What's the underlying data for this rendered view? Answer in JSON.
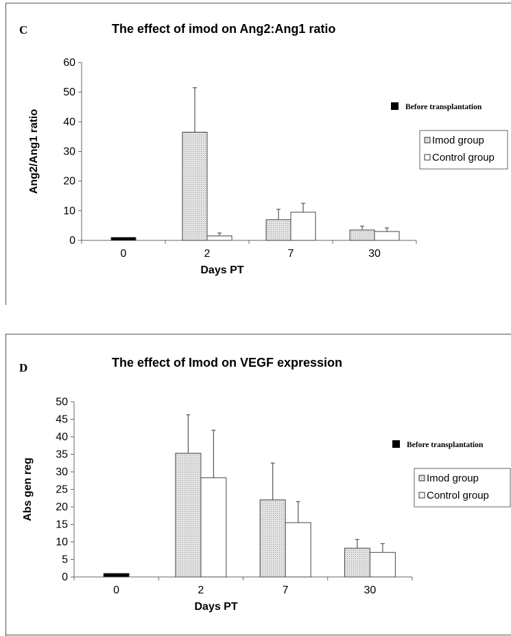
{
  "chart_data": [
    {
      "type": "bar",
      "panel_label": "C",
      "title": "The effect of imod on Ang2:Ang1 ratio",
      "xlabel": "Days PT",
      "ylabel": "Ang2/Ang1 ratio",
      "ylim": [
        0,
        60
      ],
      "yticks": [
        "0",
        "10",
        "20",
        "30",
        "40",
        "50",
        "60"
      ],
      "categories": [
        "0",
        "2",
        "7",
        "30"
      ],
      "series": [
        {
          "name": "Before transplantation",
          "color": "#000000",
          "fill": "solid",
          "values": [
            1,
            null,
            null,
            null
          ],
          "errors": [
            null,
            null,
            null,
            null
          ]
        },
        {
          "name": "Imod group",
          "color": "#d9d9d9",
          "fill": "dotted",
          "values": [
            null,
            36.5,
            7,
            3.5
          ],
          "errors": [
            null,
            15,
            3.5,
            1.3
          ]
        },
        {
          "name": "Control group",
          "color": "#ffffff",
          "fill": "solid",
          "values": [
            null,
            1.5,
            9.5,
            3
          ],
          "errors": [
            null,
            1,
            3,
            1.2
          ]
        }
      ],
      "legend_position": "right"
    },
    {
      "type": "bar",
      "panel_label": "D",
      "title": "The effect of Imod on VEGF expression",
      "xlabel": "Days PT",
      "ylabel": "Abs gen reg",
      "ylim": [
        0,
        50
      ],
      "yticks": [
        "0",
        "5",
        "10",
        "15",
        "20",
        "25",
        "30",
        "35",
        "40",
        "45",
        "50"
      ],
      "categories": [
        "0",
        "2",
        "7",
        "30"
      ],
      "series": [
        {
          "name": "Before transplantation",
          "color": "#000000",
          "fill": "solid",
          "values": [
            1,
            null,
            null,
            null
          ],
          "errors": [
            null,
            null,
            null,
            null
          ]
        },
        {
          "name": "Imod group",
          "color": "#d9d9d9",
          "fill": "dotted",
          "values": [
            null,
            35.3,
            22,
            8.2
          ],
          "errors": [
            null,
            11,
            10.5,
            2.5
          ]
        },
        {
          "name": "Control group",
          "color": "#ffffff",
          "fill": "solid",
          "values": [
            null,
            28.3,
            15.5,
            7
          ],
          "errors": [
            null,
            13.6,
            6,
            2.5
          ]
        }
      ],
      "legend_position": "right"
    }
  ]
}
